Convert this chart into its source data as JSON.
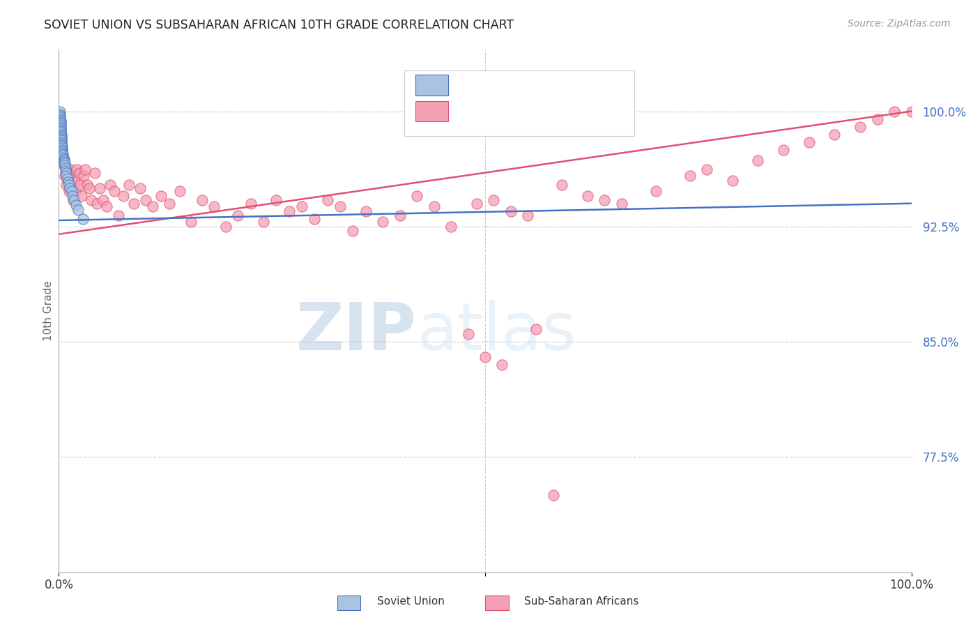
{
  "title": "SOVIET UNION VS SUBSAHARAN AFRICAN 10TH GRADE CORRELATION CHART",
  "source_text": "Source: ZipAtlas.com",
  "ylabel": "10th Grade",
  "xlim": [
    0.0,
    1.0
  ],
  "ylim": [
    0.7,
    1.04
  ],
  "yticks": [
    0.775,
    0.85,
    0.925,
    1.0
  ],
  "ytick_labels": [
    "77.5%",
    "85.0%",
    "92.5%",
    "100.0%"
  ],
  "soviet_color": "#a8c4e0",
  "subsaharan_color": "#f4a0b5",
  "trendline_soviet_color": "#4472c4",
  "trendline_subsaharan_color": "#e05070",
  "legend_text_color": "#4472c4",
  "axis_label_color": "#666666",
  "grid_color": "#cccccc",
  "background_color": "#ffffff",
  "watermark_zip": "ZIP",
  "watermark_atlas": "atlas",
  "soviet_x": [
    0.001,
    0.001,
    0.001,
    0.001,
    0.001,
    0.002,
    0.002,
    0.002,
    0.002,
    0.002,
    0.002,
    0.002,
    0.002,
    0.002,
    0.003,
    0.003,
    0.003,
    0.003,
    0.003,
    0.003,
    0.003,
    0.003,
    0.004,
    0.004,
    0.004,
    0.004,
    0.004,
    0.005,
    0.005,
    0.005,
    0.006,
    0.006,
    0.006,
    0.007,
    0.007,
    0.008,
    0.008,
    0.009,
    0.009,
    0.01,
    0.011,
    0.012,
    0.013,
    0.015,
    0.016,
    0.018,
    0.02,
    0.023,
    0.028
  ],
  "soviet_y": [
    1.0,
    0.998,
    0.997,
    0.996,
    0.995,
    0.994,
    0.993,
    0.992,
    0.991,
    0.99,
    0.989,
    0.988,
    0.987,
    0.986,
    0.985,
    0.984,
    0.983,
    0.982,
    0.981,
    0.98,
    0.979,
    0.978,
    0.977,
    0.976,
    0.975,
    0.974,
    0.973,
    0.972,
    0.971,
    0.97,
    0.969,
    0.968,
    0.967,
    0.966,
    0.965,
    0.963,
    0.961,
    0.96,
    0.958,
    0.956,
    0.954,
    0.952,
    0.95,
    0.948,
    0.945,
    0.942,
    0.939,
    0.936,
    0.93
  ],
  "subsaharan_x": [
    0.004,
    0.006,
    0.007,
    0.008,
    0.009,
    0.01,
    0.011,
    0.012,
    0.014,
    0.015,
    0.016,
    0.017,
    0.018,
    0.019,
    0.021,
    0.022,
    0.024,
    0.025,
    0.027,
    0.029,
    0.031,
    0.033,
    0.036,
    0.038,
    0.042,
    0.045,
    0.048,
    0.052,
    0.056,
    0.06,
    0.065,
    0.07,
    0.076,
    0.082,
    0.088,
    0.095,
    0.102,
    0.11,
    0.12,
    0.13,
    0.142,
    0.155,
    0.168,
    0.182,
    0.196,
    0.21,
    0.225,
    0.24,
    0.255,
    0.27,
    0.285,
    0.3,
    0.315,
    0.33,
    0.345,
    0.36,
    0.38,
    0.4,
    0.42,
    0.44,
    0.46,
    0.49,
    0.51,
    0.53,
    0.55,
    0.59,
    0.62,
    0.64,
    0.66,
    0.7,
    0.74,
    0.76,
    0.79,
    0.82,
    0.85,
    0.88,
    0.91,
    0.94,
    0.96,
    0.98,
    1.0,
    0.48,
    0.5,
    0.52,
    0.56,
    0.58
  ],
  "subsaharan_y": [
    0.97,
    0.965,
    0.958,
    0.963,
    0.952,
    0.96,
    0.955,
    0.948,
    0.962,
    0.958,
    0.95,
    0.942,
    0.955,
    0.948,
    0.962,
    0.955,
    0.96,
    0.952,
    0.945,
    0.958,
    0.962,
    0.952,
    0.95,
    0.942,
    0.96,
    0.94,
    0.95,
    0.942,
    0.938,
    0.952,
    0.948,
    0.932,
    0.945,
    0.952,
    0.94,
    0.95,
    0.942,
    0.938,
    0.945,
    0.94,
    0.948,
    0.928,
    0.942,
    0.938,
    0.925,
    0.932,
    0.94,
    0.928,
    0.942,
    0.935,
    0.938,
    0.93,
    0.942,
    0.938,
    0.922,
    0.935,
    0.928,
    0.932,
    0.945,
    0.938,
    0.925,
    0.94,
    0.942,
    0.935,
    0.932,
    0.952,
    0.945,
    0.942,
    0.94,
    0.948,
    0.958,
    0.962,
    0.955,
    0.968,
    0.975,
    0.98,
    0.985,
    0.99,
    0.995,
    1.0,
    1.0,
    0.855,
    0.84,
    0.835,
    0.858,
    0.75
  ],
  "trendline_sub_x0": 0.0,
  "trendline_sub_y0": 0.92,
  "trendline_sub_x1": 1.0,
  "trendline_sub_y1": 1.0
}
